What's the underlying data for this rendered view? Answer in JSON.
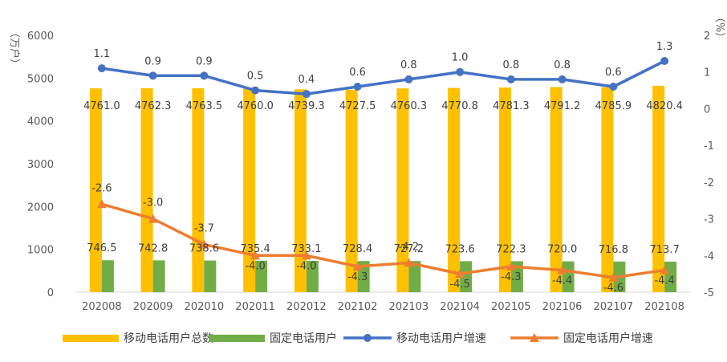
{
  "chart_data": {
    "type": "bar+line",
    "categories": [
      "202008",
      "202009",
      "202010",
      "202011",
      "202012",
      "202102",
      "202103",
      "202104",
      "202105",
      "202106",
      "202107",
      "202108"
    ],
    "left_axis": {
      "label": "（万户）",
      "ylim": [
        0,
        6000
      ],
      "ticks": [
        "0",
        "1000",
        "2000",
        "3000",
        "4000",
        "5000",
        "6000"
      ]
    },
    "right_axis": {
      "label": "（%）",
      "ylim": [
        -5,
        2
      ],
      "ticks": [
        "-5",
        "-4",
        "-3",
        "-2",
        "-1",
        "0",
        "1",
        "2"
      ]
    },
    "series": [
      {
        "name": "移动电话用户总数",
        "kind": "bar",
        "axis": "left",
        "color": "#FFC000",
        "values": [
          4761.0,
          4762.3,
          4763.5,
          4760.0,
          4739.3,
          4727.5,
          4760.3,
          4770.8,
          4781.3,
          4791.2,
          4785.9,
          4820.4
        ],
        "labels": [
          "4761.0",
          "4762.3",
          "4763.5",
          "4760.0",
          "4739.3",
          "4727.5",
          "4760.3",
          "4770.8",
          "4781.3",
          "4791.2",
          "4785.9",
          "4820.4"
        ]
      },
      {
        "name": "固定电话用户",
        "kind": "bar",
        "axis": "left",
        "color": "#70AD47",
        "values": [
          746.5,
          742.8,
          738.6,
          735.4,
          733.1,
          728.4,
          727.2,
          723.6,
          722.3,
          720.0,
          716.8,
          713.7
        ],
        "labels": [
          "746.5",
          "742.8",
          "738.6",
          "735.4",
          "733.1",
          "728.4",
          "727.2",
          "723.6",
          "722.3",
          "720.0",
          "716.8",
          "713.7"
        ]
      },
      {
        "name": "移动电话用户增速",
        "kind": "line",
        "marker": "circle",
        "axis": "right",
        "color": "#4472C4",
        "values": [
          1.1,
          0.9,
          0.9,
          0.5,
          0.4,
          0.6,
          0.8,
          1.0,
          0.8,
          0.8,
          0.6,
          1.3
        ],
        "labels": [
          "1.1",
          "0.9",
          "0.9",
          "0.5",
          "0.4",
          "0.6",
          "0.8",
          "1.0",
          "0.8",
          "0.8",
          "0.6",
          "1.3"
        ]
      },
      {
        "name": "固定电话用户增速",
        "kind": "line",
        "marker": "triangle",
        "axis": "right",
        "color": "#ED7D31",
        "values": [
          -2.6,
          -3.0,
          -3.7,
          -4.0,
          -4.0,
          -4.3,
          -4.2,
          -4.5,
          -4.3,
          -4.4,
          -4.6,
          -4.4
        ],
        "labels": [
          "-2.6",
          "-3.0",
          "-3.7",
          "-4.0",
          "-4.0",
          "-4.3",
          "-4.2",
          "-4.5",
          "-4.3",
          "-4.4",
          "-4.6",
          "-4.4"
        ]
      }
    ],
    "legend": "bottom",
    "grid": false
  }
}
